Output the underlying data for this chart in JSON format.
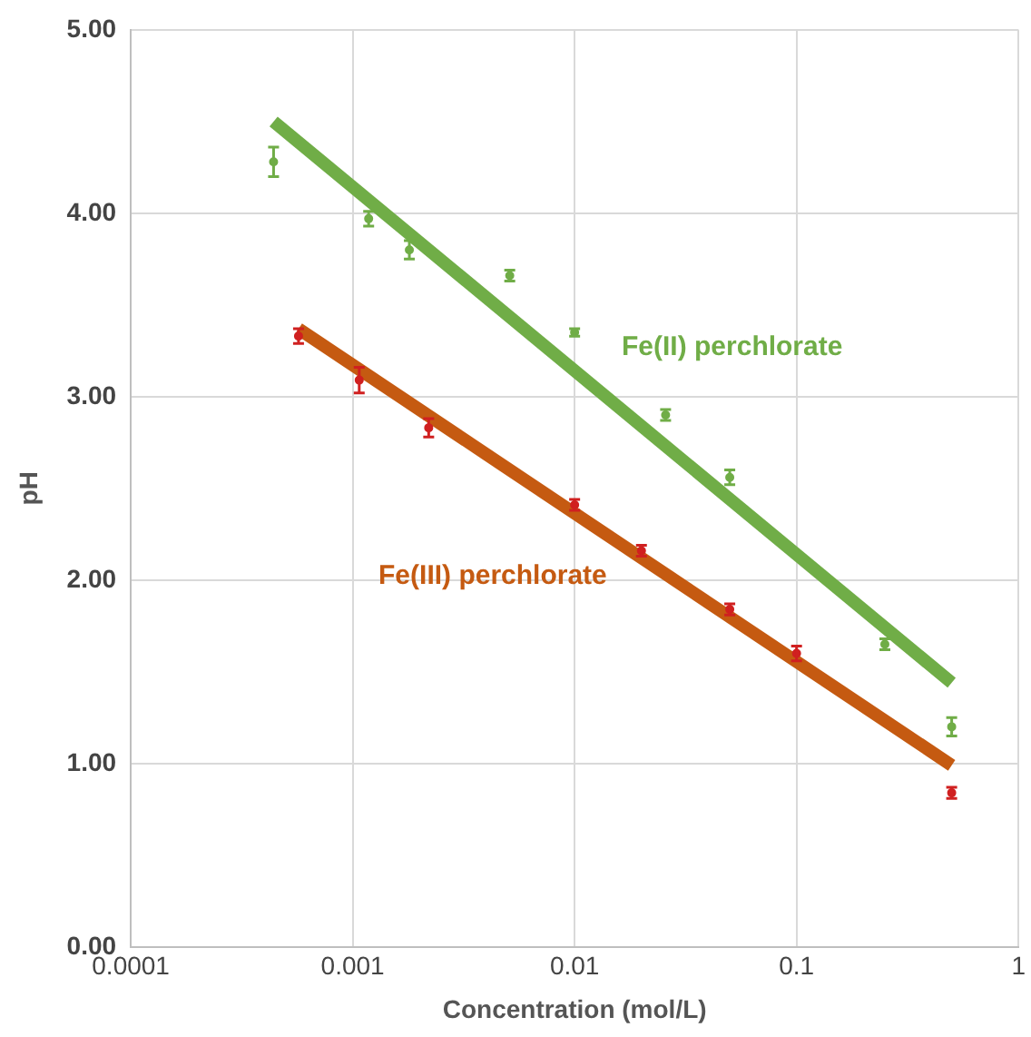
{
  "chart_data": {
    "type": "scatter",
    "xlabel": "Concentration (mol/L)",
    "ylabel": "pH",
    "log": "x",
    "grid": true,
    "xlim": [
      0.0001,
      1
    ],
    "xticks": [
      0.0001,
      0.001,
      0.01,
      0.1,
      1
    ],
    "ylim": [
      0,
      5
    ],
    "yticks": [
      {
        "value": 0,
        "label": "0.00"
      },
      {
        "value": 1,
        "label": "1.00"
      },
      {
        "value": 2,
        "label": "2.00"
      },
      {
        "value": 3,
        "label": "3.00"
      },
      {
        "value": 4,
        "label": "4.00"
      },
      {
        "value": 5,
        "label": "5.00"
      }
    ],
    "series": [
      {
        "type": "scatter",
        "marker": "circle",
        "color": "#70ad47",
        "x": [
          0.00044,
          0.00118,
          0.0018,
          0.0051,
          0.01,
          0.0257,
          0.05,
          0.25,
          0.5
        ],
        "values": [
          4.28,
          3.97,
          3.8,
          3.66,
          3.35,
          2.9,
          2.56,
          1.65,
          1.2
        ],
        "errors": [
          0.08,
          0.04,
          0.05,
          0.03,
          0.02,
          0.03,
          0.04,
          0.03,
          0.05
        ]
      },
      {
        "type": "scatter",
        "marker": "circle",
        "color": "#d02020",
        "x": [
          0.00057,
          0.00107,
          0.0022,
          0.01,
          0.02,
          0.05,
          0.1,
          0.5
        ],
        "values": [
          3.33,
          3.09,
          2.83,
          2.41,
          2.16,
          1.84,
          1.6,
          0.84
        ],
        "errors": [
          0.04,
          0.07,
          0.05,
          0.03,
          0.03,
          0.03,
          0.04,
          0.03
        ]
      },
      {
        "type": "line",
        "marker": "none",
        "name": "Fe(II) perchlorate",
        "color": "#70ad47",
        "x": [
          0.00044,
          0.5
        ],
        "values": [
          4.5,
          1.44
        ]
      },
      {
        "type": "line",
        "marker": "none",
        "name": "Fe(III) perchlorate",
        "color": "#c55a11",
        "x": [
          0.00057,
          0.5
        ],
        "values": [
          3.37,
          0.99
        ]
      }
    ]
  }
}
